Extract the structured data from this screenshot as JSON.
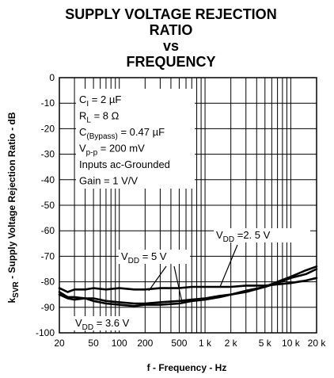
{
  "chart_data": {
    "type": "line",
    "title_lines": [
      "SUPPLY VOLTAGE REJECTION",
      "RATIO",
      "vs",
      "FREQUENCY"
    ],
    "xlabel": "f - Frequency - Hz",
    "ylabel_prefix": "k",
    "ylabel_sub": "SVR",
    "ylabel_rest": " - Supply Voltage Rejection Ratio - dB",
    "x_scale": "log",
    "xlim": [
      20,
      20000
    ],
    "ylim": [
      -100,
      0
    ],
    "grid": true,
    "x_tick_labels": [
      {
        "value": 20,
        "text": "20"
      },
      {
        "value": 50,
        "text": "50"
      },
      {
        "value": 100,
        "text": "100"
      },
      {
        "value": 200,
        "text": "200"
      },
      {
        "value": 500,
        "text": "500"
      },
      {
        "value": 1000,
        "text": "1 k"
      },
      {
        "value": 2000,
        "text": "2 k"
      },
      {
        "value": 5000,
        "text": "5 k"
      },
      {
        "value": 10000,
        "text": "10 k"
      },
      {
        "value": 20000,
        "text": "20 k"
      }
    ],
    "y_ticks": [
      0,
      -10,
      -20,
      -30,
      -40,
      -50,
      -60,
      -70,
      -80,
      -90,
      -100
    ],
    "conditions": [
      {
        "main": "C",
        "sub": "I",
        "rest": " = 2 µF"
      },
      {
        "main": "R",
        "sub": "L",
        "rest": " = 8 Ω"
      },
      {
        "main": "C",
        "sub": "(Bypass)",
        "rest": " = 0.47 µF"
      },
      {
        "main": "V",
        "sub": "p-p",
        "rest": " = 200 mV"
      },
      {
        "main": "Inputs ac-Grounded",
        "sub": "",
        "rest": ""
      },
      {
        "main": "Gain = 1 V/V",
        "sub": "",
        "rest": ""
      }
    ],
    "series": [
      {
        "name": "VDD = 5 V",
        "label_main": "V",
        "label_sub": "DD",
        "label_rest": " = 5 V",
        "x": [
          20,
          25,
          30,
          40,
          50,
          70,
          100,
          150,
          200,
          300,
          500,
          700,
          1000,
          1500,
          2000,
          3000,
          5000,
          7000,
          10000,
          15000,
          20000
        ],
        "y": [
          -82.5,
          -84,
          -83,
          -83,
          -82.5,
          -83,
          -82.5,
          -83,
          -83,
          -82.5,
          -82.5,
          -82,
          -82,
          -82,
          -82,
          -81.5,
          -81.5,
          -81,
          -80.5,
          -79.5,
          -78.5
        ]
      },
      {
        "name": "VDD = 2.5 V",
        "label_main": "V",
        "label_sub": "DD",
        "label_rest": " =2. 5 V",
        "x": [
          20,
          25,
          30,
          40,
          50,
          70,
          100,
          150,
          200,
          300,
          500,
          700,
          1000,
          1500,
          2000,
          3000,
          5000,
          7000,
          10000,
          15000,
          20000
        ],
        "y": [
          -84,
          -86,
          -86,
          -86.5,
          -87.5,
          -88.5,
          -89,
          -89.5,
          -89,
          -89,
          -88.5,
          -87.5,
          -87,
          -86,
          -85,
          -84,
          -82,
          -80,
          -78,
          -75.5,
          -74
        ]
      },
      {
        "name": "VDD = 3.6 V",
        "label_main": "V",
        "label_sub": "DD",
        "label_rest": " = 3.6 V",
        "x": [
          20,
          25,
          30,
          40,
          50,
          70,
          100,
          150,
          200,
          300,
          500,
          700,
          1000,
          1500,
          2000,
          3000,
          5000,
          7000,
          10000,
          15000,
          20000
        ],
        "y": [
          -85,
          -86.5,
          -87,
          -86.5,
          -86.5,
          -87.5,
          -88,
          -88.5,
          -88.5,
          -88,
          -87.5,
          -87,
          -86.5,
          -85.5,
          -85,
          -83.5,
          -82,
          -80.5,
          -78.5,
          -77,
          -75
        ]
      }
    ]
  }
}
